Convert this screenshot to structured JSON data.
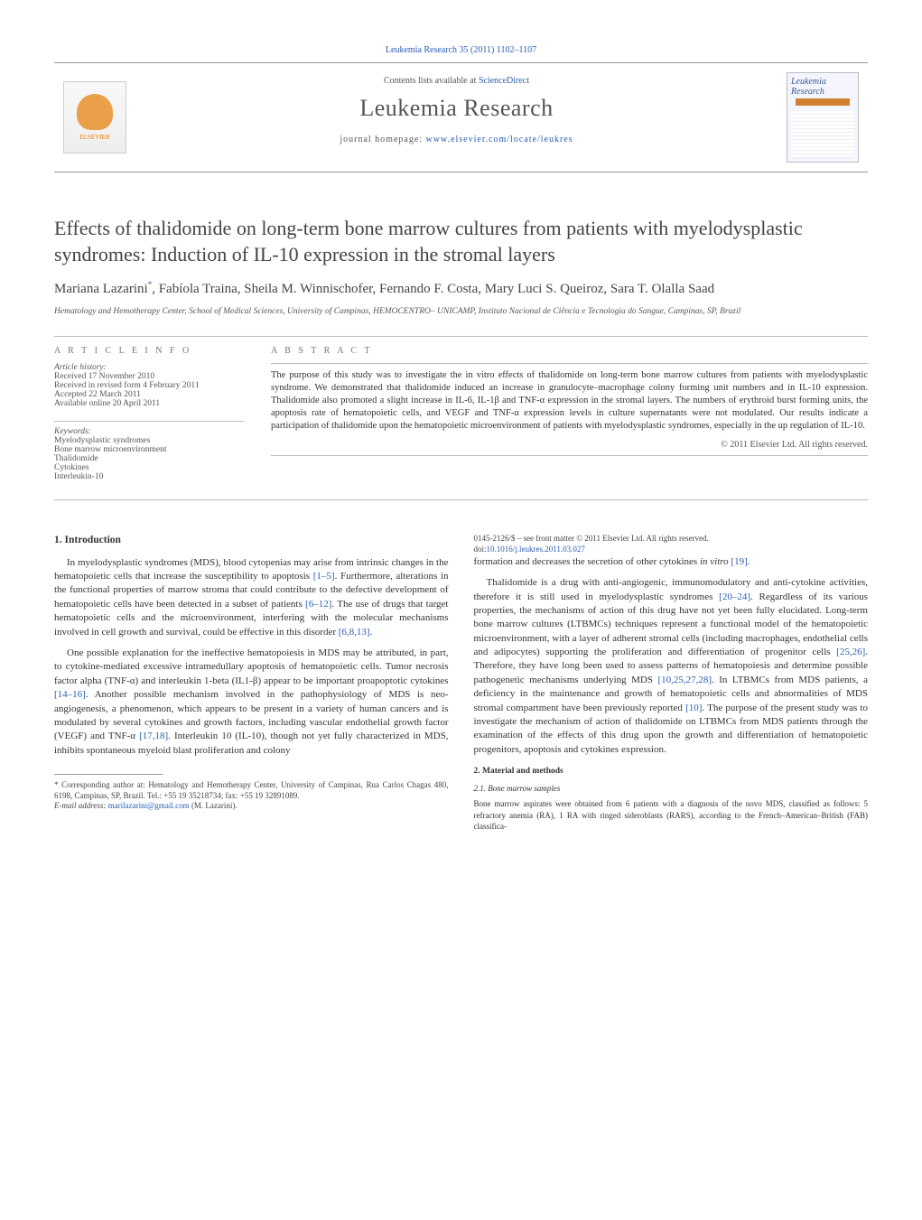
{
  "running_head": {
    "journal": "Leukemia Research",
    "citation": "35 (2011) 1102–1107",
    "link_text": "Leukemia Research 35 (2011) 1102–1107"
  },
  "banner": {
    "contents_prefix": "Contents lists available at ",
    "contents_link": "ScienceDirect",
    "journal_name": "Leukemia Research",
    "homepage_prefix": "journal homepage: ",
    "homepage_url": "www.elsevier.com/locate/leukres",
    "elsevier_label": "ELSEVIER",
    "cover_title": "Leukemia Research"
  },
  "title": "Effects of thalidomide on long-term bone marrow cultures from patients with myelodysplastic syndromes: Induction of IL-10 expression in the stromal layers",
  "authors_line": "Mariana Lazarini*, Fabíola Traina, Sheila M. Winnischofer, Fernando F. Costa, Mary Luci S. Queiroz, Sara T. Olalla Saad",
  "affiliation": "Hematology and Hemotherapy Center, School of Medical Sciences, University of Campinas, HEMOCENTRO– UNICAMP, Instituto Nacional de Ciência e Tecnologia do Sangue, Campinas, SP, Brazil",
  "article_info": {
    "heading": "A R T I C L E   I N F O",
    "history_label": "Article history:",
    "received": "Received 17 November 2010",
    "revised": "Received in revised form 4 February 2011",
    "accepted": "Accepted 22 March 2011",
    "online": "Available online 20 April 2011",
    "keywords_label": "Keywords:",
    "keywords": [
      "Myelodysplastic syndromes",
      "Bone marrow microenvironment",
      "Thalidomide",
      "Cytokines",
      "Interleukin-10"
    ]
  },
  "abstract": {
    "heading": "A B S T R A C T",
    "text": "The purpose of this study was to investigate the in vitro effects of thalidomide on long-term bone marrow cultures from patients with myelodysplastic syndrome. We demonstrated that thalidomide induced an increase in granulocyte–macrophage colony forming unit numbers and in IL-10 expression. Thalidomide also promoted a slight increase in IL-6, IL-1β and TNF-α expression in the stromal layers. The numbers of erythroid burst forming units, the apoptosis rate of hematopoietic cells, and VEGF and TNF-α expression levels in culture supernatants were not modulated. Our results indicate a participation of thalidomide upon the hematopoietic microenvironment of patients with myelodysplastic syndromes, especially in the up regulation of IL-10.",
    "copyright": "© 2011 Elsevier Ltd. All rights reserved."
  },
  "sections": {
    "s1_heading": "1. Introduction",
    "s1_p1": "In myelodysplastic syndromes (MDS), blood cytopenias may arise from intrinsic changes in the hematopoietic cells that increase the susceptibility to apoptosis [1–5]. Furthermore, alterations in the functional properties of marrow stroma that could contribute to the defective development of hematopoietic cells have been detected in a subset of patients [6–12]. The use of drugs that target hematopoietic cells and the microenvironment, interfering with the molecular mechanisms involved in cell growth and survival, could be effective in this disorder [6,8,13].",
    "s1_p2": "One possible explanation for the ineffective hematopoiesis in MDS may be attributed, in part, to cytokine-mediated excessive intramedullary apoptosis of hematopoietic cells. Tumor necrosis factor alpha (TNF-α) and interleukin 1-beta (IL1-β) appear to be important proapoptotic cytokines [14–16]. Another possible mechanism involved in the pathophysiology of MDS is neo-angiogenesis, a phenomenon, which appears to be present in a variety of human cancers and is modulated by several cytokines and growth factors, including vascular endothelial growth factor (VEGF) and TNF-α [17,18]. Interleukin 10 (IL-10), though not yet fully characterized in MDS, inhibits spontaneous myeloid blast proliferation and colony",
    "s1_p3": "formation and decreases the secretion of other cytokines in vitro [19].",
    "s1_p4": "Thalidomide is a drug with anti-angiogenic, immunomodulatory and anti-cytokine activities, therefore it is still used in myelodysplastic syndromes [20–24]. Regardless of its various properties, the mechanisms of action of this drug have not yet been fully elucidated. Long-term bone marrow cultures (LTBMCs) techniques represent a functional model of the hematopoietic microenvironment, with a layer of adherent stromal cells (including macrophages, endothelial cells and adipocytes) supporting the proliferation and differentiation of progenitor cells [25,26]. Therefore, they have long been used to assess patterns of hematopoiesis and determine possible pathogenetic mechanisms underlying MDS [10,25,27,28]. In LTBMCs from MDS patients, a deficiency in the maintenance and growth of hematopoietic cells and abnormalities of MDS stromal compartment have been previously reported [10]. The purpose of the present study was to investigate the mechanism of action of thalidomide on LTBMCs from MDS patients through the examination of the effects of this drug upon the growth and differentiation of hematopoietic progenitors, apoptosis and cytokines expression.",
    "s2_heading": "2. Material and methods",
    "s2_1_heading": "2.1. Bone marrow samples",
    "s2_1_p1": "Bone marrow aspirates were obtained from 6 patients with a diagnosis of the novo MDS, classified as follows: 5 refractory anemia (RA), 1 RA with ringed sideroblasts (RARS), according to the French–American–British (FAB) classifica-"
  },
  "footnote": {
    "corr_label": "* Corresponding author at: Hematology and Hemotherapy Center, University of Campinas, Rua Carlos Chagas 480, 6198, Campinas, SP, Brazil. Tel.: +55 19 35218734; fax: +55 19 32891089.",
    "email_label": "E-mail address:",
    "email": "marilazarini@gmail.com",
    "email_suffix": "(M. Lazarini)."
  },
  "footer": {
    "issn_line": "0145-2126/$ – see front matter © 2011 Elsevier Ltd. All rights reserved.",
    "doi_label": "doi:",
    "doi": "10.1016/j.leukres.2011.03.027"
  },
  "refs": {
    "r1_5": "[1–5]",
    "r6_12": "[6–12]",
    "r6_8_13": "[6,8,13]",
    "r14_16": "[14–16]",
    "r17_18": "[17,18]",
    "r19": "[19]",
    "r20_24": "[20–24]",
    "r25_26": "[25,26]",
    "r10_25_27_28": "[10,25,27,28]",
    "r10": "[10]"
  },
  "colors": {
    "link": "#2a5db0",
    "text": "#333333",
    "muted": "#555555",
    "rule": "#999999",
    "elsevier_orange": "#e67a00"
  }
}
